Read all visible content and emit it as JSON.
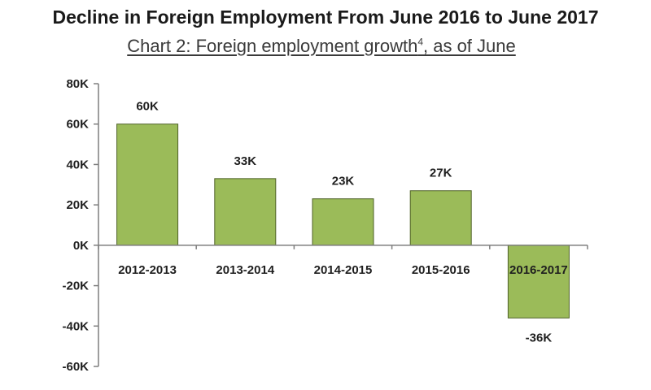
{
  "header": {
    "title": "Decline in Foreign Employment From June 2016 to June 2017",
    "subtitle_main": "Chart 2:  Foreign employment growth",
    "subtitle_sup": "4",
    "subtitle_tail": ", as of June"
  },
  "chart_data": {
    "type": "bar",
    "title": "Decline in Foreign Employment From June 2016 to June 2017",
    "subtitle": "Chart 2:  Foreign employment growth4, as of June",
    "categories": [
      "2012-2013",
      "2013-2014",
      "2014-2015",
      "2015-2016",
      "2016-2017"
    ],
    "values": [
      60,
      33,
      23,
      27,
      -36
    ],
    "data_labels": [
      "60K",
      "33K",
      "23K",
      "27K",
      "-36K"
    ],
    "ylim": [
      -60,
      80
    ],
    "yticks": [
      80,
      60,
      40,
      20,
      0,
      -20,
      -40,
      -60
    ],
    "ytick_labels": [
      "80K",
      "60K",
      "40K",
      "20K",
      "0K",
      "-20K",
      "-40K",
      "-60K"
    ],
    "xlabel": "",
    "ylabel": "",
    "grid": false,
    "legend": "none",
    "bar_color": "#9bbb59",
    "bar_edge_color": "#4f6228"
  }
}
